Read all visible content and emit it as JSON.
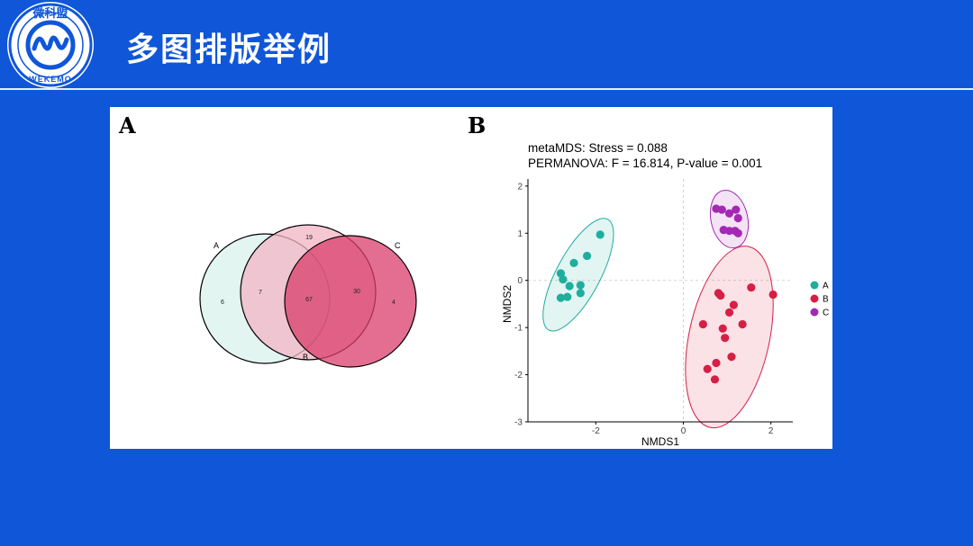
{
  "header": {
    "title": "多图排版举例"
  },
  "logo": {
    "top_text": "微科盟",
    "bottom_text": "WEKEMO",
    "colors": {
      "ring": "#0f56d9"
    }
  },
  "colors": {
    "background": "#0f56d9",
    "groupA": "#1fae9d",
    "groupB": "#d61f45",
    "groupC": "#a528b4"
  },
  "figure": {
    "panel_a": {
      "label": "A",
      "venn": {
        "set_labels": [
          "A",
          "B",
          "C"
        ],
        "regions": {
          "A_only": "6",
          "AB": "7",
          "B_only": "19",
          "ABC": "67",
          "BC": "30",
          "C_only": "4"
        }
      }
    },
    "panel_b": {
      "label": "B",
      "annotations": [
        "metaMDS: Stress = 0.088",
        "PERMANOVA: F = 16.814, P-value = 0.001"
      ],
      "legend_groups": [
        "A",
        "B",
        "C"
      ]
    }
  },
  "chart_data": {
    "type": "scatter",
    "title": "",
    "xlabel": "NMDS1",
    "ylabel": "NMDS2",
    "xlim": [
      -3.55,
      2.5
    ],
    "ylim": [
      -3,
      2.15
    ],
    "x_ticks": [
      -2,
      0,
      2
    ],
    "y_ticks": [
      -3,
      -2,
      -1,
      0,
      1,
      2
    ],
    "grid": false,
    "legend": "right",
    "series": [
      {
        "name": "A",
        "color": "#1fae9d",
        "points": [
          [
            -1.9,
            0.97
          ],
          [
            -2.2,
            0.52
          ],
          [
            -2.5,
            0.37
          ],
          [
            -2.8,
            0.15
          ],
          [
            -2.75,
            0.02
          ],
          [
            -2.6,
            -0.12
          ],
          [
            -2.35,
            -0.1
          ],
          [
            -2.65,
            -0.35
          ],
          [
            -2.8,
            -0.37
          ],
          [
            -2.35,
            -0.27
          ]
        ]
      },
      {
        "name": "B",
        "color": "#d61f45",
        "points": [
          [
            0.8,
            -0.27
          ],
          [
            0.85,
            -0.32
          ],
          [
            1.55,
            -0.15
          ],
          [
            2.05,
            -0.3
          ],
          [
            1.15,
            -0.52
          ],
          [
            1.05,
            -0.68
          ],
          [
            0.45,
            -0.93
          ],
          [
            1.35,
            -0.93
          ],
          [
            0.9,
            -1.02
          ],
          [
            0.95,
            -1.22
          ],
          [
            1.1,
            -1.62
          ],
          [
            0.75,
            -1.75
          ],
          [
            0.55,
            -1.88
          ],
          [
            0.72,
            -2.1
          ]
        ]
      },
      {
        "name": "C",
        "color": "#a528b4",
        "points": [
          [
            0.75,
            1.52
          ],
          [
            0.88,
            1.5
          ],
          [
            1.05,
            1.42
          ],
          [
            1.2,
            1.5
          ],
          [
            1.25,
            1.32
          ],
          [
            0.92,
            1.07
          ],
          [
            1.05,
            1.05
          ],
          [
            1.18,
            1.05
          ],
          [
            1.25,
            1.0
          ]
        ]
      }
    ],
    "ellipses": [
      {
        "group": "A",
        "cx": -2.4,
        "cy": 0.12,
        "rx": 0.5,
        "ry": 1.33,
        "rotate_deg": 28
      },
      {
        "group": "B",
        "cx": 1.05,
        "cy": -1.2,
        "rx": 0.92,
        "ry": 1.96,
        "rotate_deg": 12
      },
      {
        "group": "C",
        "cx": 1.05,
        "cy": 1.3,
        "rx": 0.42,
        "ry": 0.62,
        "rotate_deg": -12
      }
    ]
  }
}
